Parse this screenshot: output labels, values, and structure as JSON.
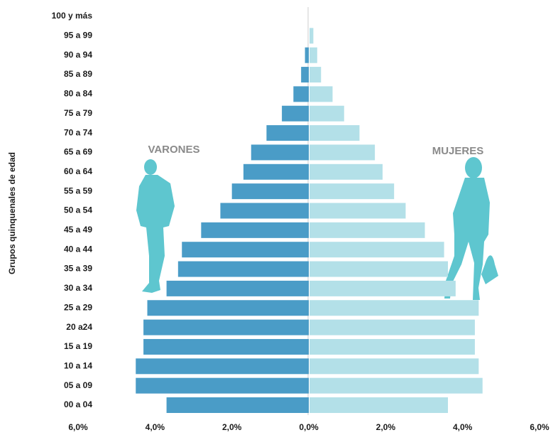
{
  "chart_data": {
    "type": "pyramid",
    "y_label": "Grupos quinquenales de edad",
    "categories": [
      "00 a 04",
      "05 a 09",
      "10 a 14",
      "15 a 19",
      "20 a24",
      "25 a 29",
      "30 a 34",
      "35 a 39",
      "40 a 44",
      "45 a 49",
      "50 a 54",
      "55 a 59",
      "60 a 64",
      "65 a 69",
      "70 a 74",
      "75 a 79",
      "80 a 84",
      "85 a 89",
      "90 a 94",
      "95 a 99",
      "100 y más"
    ],
    "series": [
      {
        "name": "VARONES",
        "color": "#4a9cc7",
        "side": "left",
        "values": [
          3.7,
          4.5,
          4.5,
          4.3,
          4.3,
          4.2,
          3.7,
          3.4,
          3.3,
          2.8,
          2.3,
          2.0,
          1.7,
          1.5,
          1.1,
          0.7,
          0.4,
          0.2,
          0.1,
          0,
          0
        ]
      },
      {
        "name": "MUJERES",
        "color": "#b3e0e8",
        "side": "right",
        "values": [
          3.6,
          4.5,
          4.4,
          4.3,
          4.3,
          4.4,
          3.8,
          3.6,
          3.5,
          3.0,
          2.5,
          2.2,
          1.9,
          1.7,
          1.3,
          0.9,
          0.6,
          0.3,
          0.2,
          0.1,
          0
        ]
      }
    ],
    "xlim": [
      -6,
      6
    ],
    "xticks": [
      {
        "value": -6,
        "label": "6,0%"
      },
      {
        "value": -4,
        "label": "4,0%"
      },
      {
        "value": -2,
        "label": "2,0%"
      },
      {
        "value": 0,
        "label": "0,0%"
      },
      {
        "value": 2,
        "label": "2,0%"
      },
      {
        "value": 4,
        "label": "4,0%"
      },
      {
        "value": 6,
        "label": "6,0%"
      }
    ]
  }
}
